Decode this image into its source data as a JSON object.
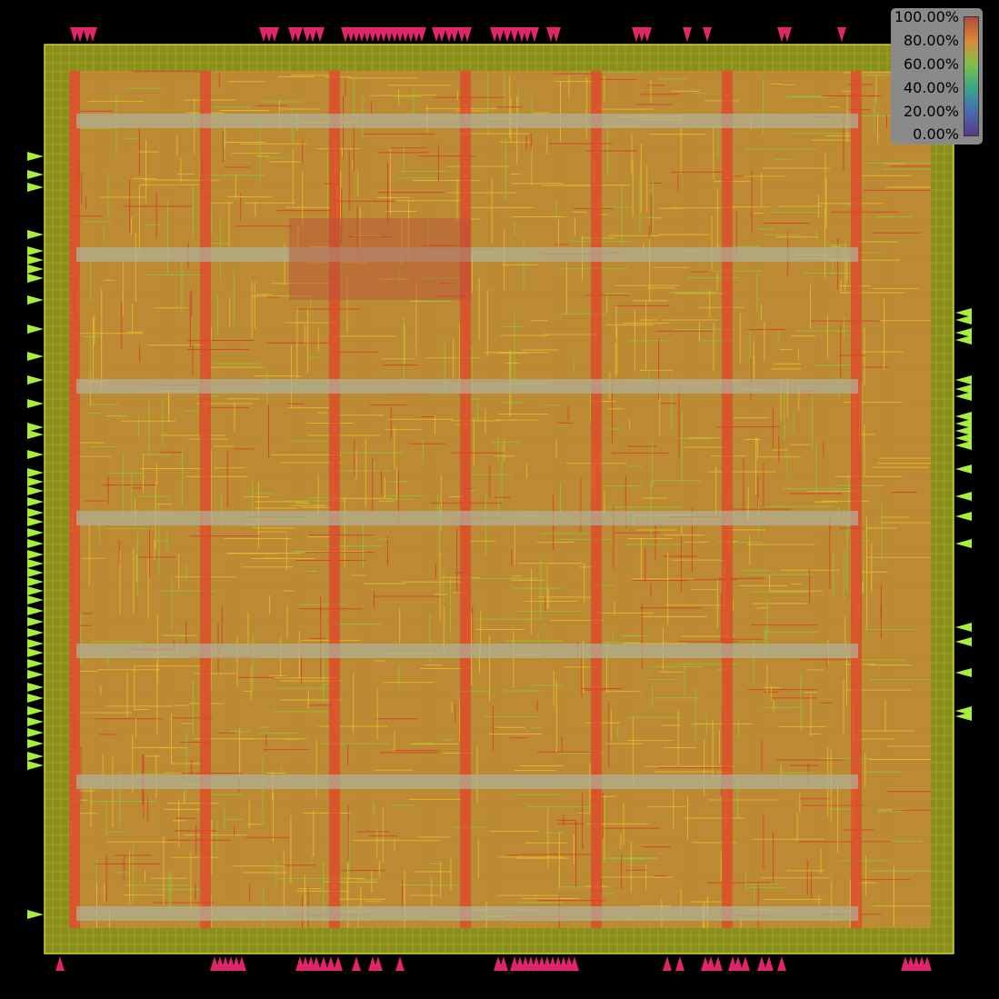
{
  "view": {
    "type": "routing-congestion-heatmap",
    "colors": {
      "background": "#000000",
      "die_fill": "#8a8f1c",
      "die_grid": "#c6d23a",
      "core_fill": "#c08a35",
      "hot_stripe": "#e0452c",
      "power_strap": "#b0b09a",
      "pin_top_bottom": "#e0266a",
      "pin_left_right": "#a8ee3c",
      "wire_yellow": "#e8c030",
      "wire_green": "#90c838",
      "wire_red": "#d83828"
    }
  },
  "legend": {
    "labels": [
      "100.00%",
      "80.00%",
      "60.00%",
      "40.00%",
      "20.00%",
      "0.00%"
    ],
    "gradient": [
      "#b04a3a",
      "#d98a3a",
      "#7fbf4a",
      "#3aa58a",
      "#4a6ab0",
      "#5a3a80"
    ]
  }
}
